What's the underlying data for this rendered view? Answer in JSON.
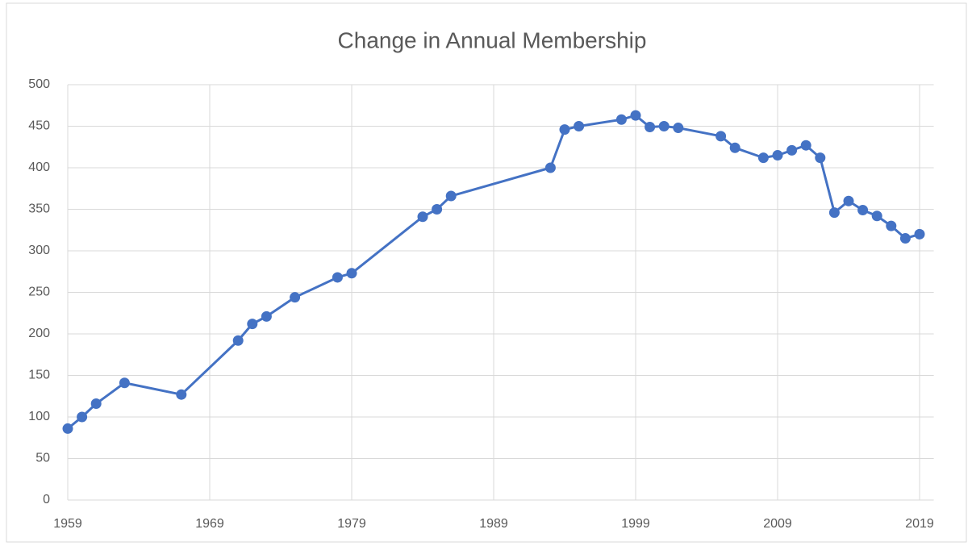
{
  "chart_data": {
    "type": "line",
    "title": "Change in Annual Membership",
    "x": [
      1959,
      1960,
      1961,
      1963,
      1967,
      1971,
      1972,
      1973,
      1975,
      1978,
      1979,
      1984,
      1985,
      1986,
      1993,
      1994,
      1995,
      1998,
      1999,
      2000,
      2001,
      2002,
      2005,
      2006,
      2008,
      2009,
      2010,
      2011,
      2012,
      2013,
      2014,
      2015,
      2016,
      2017,
      2018,
      2019
    ],
    "series": [
      {
        "name": "Membership",
        "color": "#4472c4",
        "values": [
          86,
          100,
          116,
          141,
          127,
          192,
          212,
          221,
          244,
          268,
          273,
          341,
          350,
          366,
          400,
          446,
          450,
          458,
          463,
          449,
          450,
          448,
          438,
          424,
          412,
          415,
          421,
          427,
          412,
          346,
          360,
          349,
          342,
          330,
          315,
          320
        ]
      }
    ],
    "xlim": [
      1959,
      2020
    ],
    "xticks": [
      1959,
      1969,
      1979,
      1989,
      1999,
      2009,
      2019
    ],
    "ylim": [
      0,
      500
    ],
    "yticks": [
      0,
      50,
      100,
      150,
      200,
      250,
      300,
      350,
      400,
      450,
      500
    ],
    "grid": true
  }
}
